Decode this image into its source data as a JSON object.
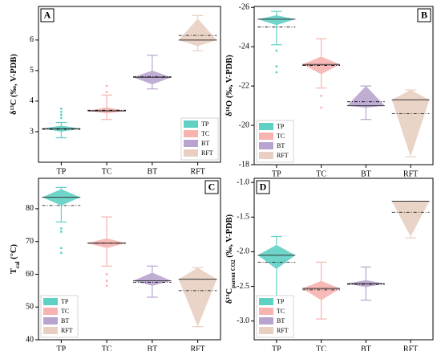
{
  "chart_data": [
    {
      "type": "box",
      "panel_label": "A",
      "y_label": {
        "main": "δ¹³C",
        "sub": "",
        "rest": " (‰, V-PDB)"
      },
      "categories": [
        "TP",
        "TC",
        "BT",
        "RFT"
      ],
      "ylim": [
        2,
        7.1
      ],
      "yticks": [
        3,
        4,
        5,
        6
      ],
      "legend": "lower right",
      "label_corner": "upper left",
      "series": [
        {
          "name": "TP",
          "color": "#5fd0c4",
          "whisker_low": 2.8,
          "box_low": 3.0,
          "median": 3.1,
          "box_high": 3.2,
          "whisker_high": 3.3,
          "mean": 3.08,
          "outliers": [
            3.45,
            3.55,
            3.65,
            3.75
          ]
        },
        {
          "name": "TC",
          "color": "#f7b3b0",
          "whisker_low": 3.4,
          "box_low": 3.6,
          "median": 3.68,
          "box_high": 3.8,
          "whisker_high": 4.2,
          "mean": 3.7,
          "outliers": [
            4.3,
            4.5
          ]
        },
        {
          "name": "BT",
          "color": "#b9a4cf",
          "whisker_low": 4.4,
          "box_low": 4.55,
          "median": 4.78,
          "box_high": 5.0,
          "whisker_high": 5.5,
          "mean": 4.8,
          "outliers": []
        },
        {
          "name": "RFT",
          "color": "#e8cfc1",
          "whisker_low": 5.65,
          "box_low": 5.8,
          "median": 6.0,
          "box_high": 6.7,
          "whisker_high": 6.8,
          "mean": 6.15,
          "outliers": []
        }
      ]
    },
    {
      "type": "box",
      "panel_label": "B",
      "y_label": {
        "main": "δ¹⁸O",
        "sub": "",
        "rest": " (‰, V-PDB)"
      },
      "categories": [
        "TP",
        "TC",
        "BT",
        "RFT"
      ],
      "ylim": [
        -18,
        -26.05
      ],
      "yticks": [
        -26,
        -24,
        -22,
        -20,
        -18
      ],
      "legend": "lower left",
      "label_corner": "upper right",
      "series": [
        {
          "name": "TP",
          "color": "#5fd0c4",
          "whisker_low": -25.8,
          "box_low": -25.6,
          "median": -25.4,
          "box_high": -25.1,
          "whisker_high": -24.1,
          "mean": -25.0,
          "outliers": [
            -23.8,
            -23.0,
            -22.7
          ]
        },
        {
          "name": "TC",
          "color": "#f7b3b0",
          "whisker_low": -24.4,
          "box_low": -23.5,
          "median": -23.1,
          "box_high": -22.6,
          "whisker_high": -21.9,
          "mean": -23.05,
          "outliers": [
            -21.5,
            -20.9
          ]
        },
        {
          "name": "BT",
          "color": "#b9a4cf",
          "whisker_low": -22.0,
          "box_low": -22.0,
          "median": -21.0,
          "box_high": -20.9,
          "whisker_high": -20.3,
          "mean": -21.2,
          "outliers": []
        },
        {
          "name": "RFT",
          "color": "#e8cfc1",
          "whisker_low": -21.8,
          "box_low": -21.8,
          "median": -21.3,
          "box_high": -18.4,
          "whisker_high": -18.4,
          "mean": -20.6,
          "outliers": []
        }
      ]
    },
    {
      "type": "box",
      "panel_label": "C",
      "y_label": {
        "main": "T",
        "sub": "cal",
        "rest": " (°C)"
      },
      "categories": [
        "TP",
        "TC",
        "BT",
        "RFT"
      ],
      "ylim": [
        40,
        89.3
      ],
      "yticks": [
        40,
        50,
        60,
        70,
        80
      ],
      "legend": "lower left",
      "label_corner": "upper right",
      "series": [
        {
          "name": "TP",
          "color": "#5fd0c4",
          "whisker_low": 76,
          "box_low": 81,
          "median": 83.5,
          "box_high": 86,
          "whisker_high": 86.5,
          "mean": 81,
          "outliers": [
            74,
            73,
            68,
            66.5
          ]
        },
        {
          "name": "TC",
          "color": "#f7b3b0",
          "whisker_low": 62.5,
          "box_low": 68,
          "median": 69.5,
          "box_high": 71,
          "whisker_high": 77.5,
          "mean": 69.5,
          "outliers": [
            60,
            58,
            56.5
          ]
        },
        {
          "name": "BT",
          "color": "#b9a4cf",
          "whisker_low": 53,
          "box_low": 56.5,
          "median": 58,
          "box_high": 60.5,
          "whisker_high": 62.5,
          "mean": 57.5,
          "outliers": []
        },
        {
          "name": "RFT",
          "color": "#e8cfc1",
          "whisker_low": 44,
          "box_low": 44,
          "median": 58.5,
          "box_high": 62,
          "whisker_high": 62,
          "mean": 55,
          "outliers": []
        }
      ]
    },
    {
      "type": "box",
      "panel_label": "D",
      "y_label": {
        "main": "δ¹³C",
        "sub": "parent CO2",
        "rest": " (‰, V-PDB)"
      },
      "categories": [
        "TP",
        "TC",
        "BT",
        "RFT"
      ],
      "ylim": [
        -3.27,
        -0.94
      ],
      "yticks": [
        {
          "value": -1,
          "label": "-1.0"
        },
        -1.5,
        {
          "value": -2,
          "label": "-2.0"
        },
        -2.5,
        {
          "value": -3,
          "label": "-3.0"
        }
      ],
      "legend": "lower left",
      "label_corner": "upper left",
      "series": [
        {
          "name": "TP",
          "color": "#5fd0c4",
          "whisker_low": -2.7,
          "box_low": -2.25,
          "median": -2.05,
          "box_high": -1.9,
          "whisker_high": -1.78,
          "mean": -2.15,
          "outliers": []
        },
        {
          "name": "TC",
          "color": "#f7b3b0",
          "whisker_low": -2.97,
          "box_low": -2.7,
          "median": -2.53,
          "box_high": -2.42,
          "whisker_high": -2.15,
          "mean": -2.55,
          "outliers": []
        },
        {
          "name": "BT",
          "color": "#b9a4cf",
          "whisker_low": -2.7,
          "box_low": -2.51,
          "median": -2.46,
          "box_high": -2.41,
          "whisker_high": -2.22,
          "mean": -2.47,
          "outliers": []
        },
        {
          "name": "RFT",
          "color": "#e8cfc1",
          "whisker_low": -1.8,
          "box_low": -1.78,
          "median": -1.27,
          "box_high": -1.27,
          "whisker_high": -1.27,
          "mean": -1.43,
          "outliers": []
        }
      ]
    }
  ]
}
